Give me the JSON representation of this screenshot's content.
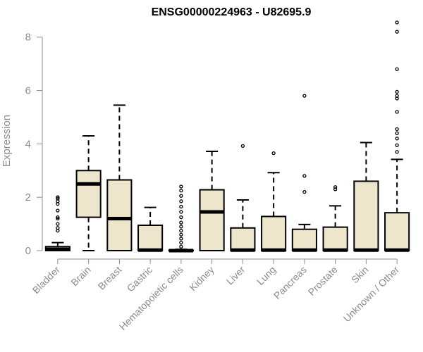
{
  "chart_data": {
    "type": "box",
    "title": "ENSG00000224963 - U82695.9",
    "ylabel": "Expression",
    "xlabel": "",
    "ylim": [
      0,
      8.6
    ],
    "yticks": [
      0,
      2,
      4,
      6,
      8
    ],
    "grid": false,
    "box_fill": "#ede6cc",
    "outline_color": "#000000",
    "axis_color": "#8c8c8c",
    "categories": [
      "Bladder",
      "Brain",
      "Breast",
      "Gastric",
      "Hematopoietic cells",
      "Kidney",
      "Liver",
      "Lung",
      "Pancreas",
      "Prostate",
      "Skin",
      "Unknown / Other"
    ],
    "boxes": [
      {
        "whisker_low": 0,
        "q1": 0,
        "median": 0.05,
        "q3": 0.15,
        "whisker_high": 0.3,
        "outliers": [
          0.75,
          0.85,
          1.0,
          1.2,
          1.25,
          1.5,
          1.75,
          1.85,
          1.95,
          2.0
        ]
      },
      {
        "whisker_low": 0,
        "q1": 1.25,
        "median": 2.5,
        "q3": 3.0,
        "whisker_high": 4.3,
        "outliers": []
      },
      {
        "whisker_low": 0,
        "q1": 0,
        "median": 1.2,
        "q3": 2.65,
        "whisker_high": 5.45,
        "outliers": []
      },
      {
        "whisker_low": 0,
        "q1": 0,
        "median": 0.02,
        "q3": 0.95,
        "whisker_high": 1.62,
        "outliers": []
      },
      {
        "whisker_low": 0,
        "q1": 0,
        "median": 0.0,
        "q3": 0.02,
        "whisker_high": 0.05,
        "outliers": [
          0.15,
          0.3,
          0.45,
          0.6,
          0.75,
          0.9,
          1.05,
          1.25,
          1.45,
          1.65,
          1.85,
          2.05,
          2.25,
          2.4
        ]
      },
      {
        "whisker_low": 0,
        "q1": 0,
        "median": 1.45,
        "q3": 2.28,
        "whisker_high": 3.72,
        "outliers": []
      },
      {
        "whisker_low": 0,
        "q1": 0,
        "median": 0.02,
        "q3": 0.85,
        "whisker_high": 1.9,
        "outliers": [
          3.92
        ]
      },
      {
        "whisker_low": 0,
        "q1": 0,
        "median": 0.02,
        "q3": 1.28,
        "whisker_high": 2.92,
        "outliers": [
          3.65
        ]
      },
      {
        "whisker_low": 0,
        "q1": 0,
        "median": 0.02,
        "q3": 0.8,
        "whisker_high": 0.98,
        "outliers": [
          2.2,
          2.8,
          5.8
        ]
      },
      {
        "whisker_low": 0,
        "q1": 0,
        "median": 0.02,
        "q3": 0.88,
        "whisker_high": 1.68,
        "outliers": [
          2.3,
          2.38
        ]
      },
      {
        "whisker_low": 0,
        "q1": 0,
        "median": 0.02,
        "q3": 2.6,
        "whisker_high": 4.05,
        "outliers": []
      },
      {
        "whisker_low": 0,
        "q1": 0,
        "median": 0.02,
        "q3": 1.42,
        "whisker_high": 3.42,
        "outliers": [
          3.7,
          3.95,
          4.2,
          4.4,
          4.55,
          5.2,
          5.7,
          5.8,
          5.95,
          6.8,
          8.2,
          8.55
        ]
      }
    ]
  }
}
